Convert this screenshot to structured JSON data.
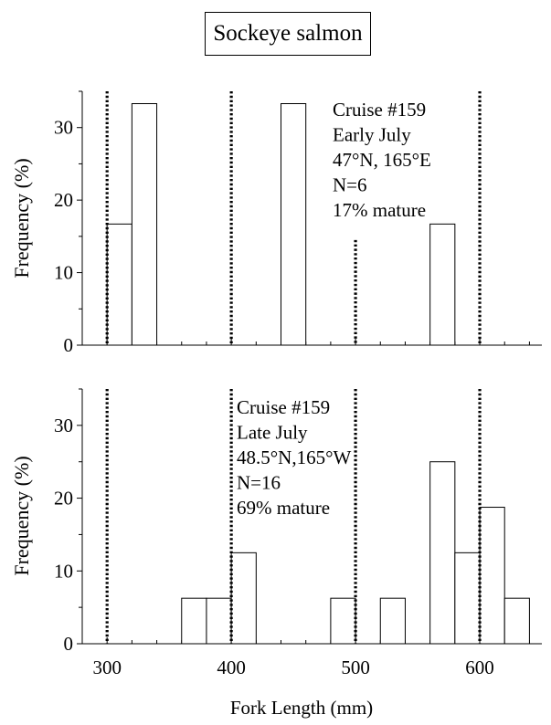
{
  "title": "Sockeye salmon",
  "chart_data": [
    {
      "type": "bar",
      "panel": "top",
      "ylabel": "Frequency (%)",
      "xlabel": "",
      "xlim": [
        280,
        650
      ],
      "ylim": [
        0,
        35
      ],
      "yticks": [
        0,
        10,
        20,
        30
      ],
      "bin_width": 20,
      "bins": [
        {
          "x0": 300,
          "value": 16.7
        },
        {
          "x0": 320,
          "value": 33.3
        },
        {
          "x0": 440,
          "value": 33.3
        },
        {
          "x0": 560,
          "value": 16.7
        }
      ],
      "vlines": [
        {
          "x": 300,
          "y_top": 35
        },
        {
          "x": 400,
          "y_top": 35
        },
        {
          "x": 500,
          "y_top": 14.5
        },
        {
          "x": 600,
          "y_top": 35
        }
      ],
      "annotation": [
        "Cruise #159",
        "Early July",
        "47°N, 165°E",
        "N=6",
        "17% mature"
      ]
    },
    {
      "type": "bar",
      "panel": "bottom",
      "ylabel": "Frequency (%)",
      "xlabel": "Fork Length (mm)",
      "xlim": [
        280,
        650
      ],
      "ylim": [
        0,
        35
      ],
      "yticks": [
        0,
        10,
        20,
        30
      ],
      "xticks": [
        300,
        400,
        500,
        600
      ],
      "bin_width": 20,
      "bins": [
        {
          "x0": 360,
          "value": 6.25
        },
        {
          "x0": 380,
          "value": 6.25
        },
        {
          "x0": 400,
          "value": 12.5
        },
        {
          "x0": 480,
          "value": 6.25
        },
        {
          "x0": 520,
          "value": 6.25
        },
        {
          "x0": 560,
          "value": 25
        },
        {
          "x0": 580,
          "value": 12.5
        },
        {
          "x0": 600,
          "value": 18.75
        },
        {
          "x0": 620,
          "value": 6.25
        }
      ],
      "vlines": [
        {
          "x": 300,
          "y_top": 35
        },
        {
          "x": 400,
          "y_top": 35
        },
        {
          "x": 500,
          "y_top": 35
        },
        {
          "x": 600,
          "y_top": 35
        }
      ],
      "annotation": [
        "Cruise #159",
        "Late July",
        "48.5°N,165°W",
        "N=16",
        "69% mature"
      ]
    }
  ]
}
